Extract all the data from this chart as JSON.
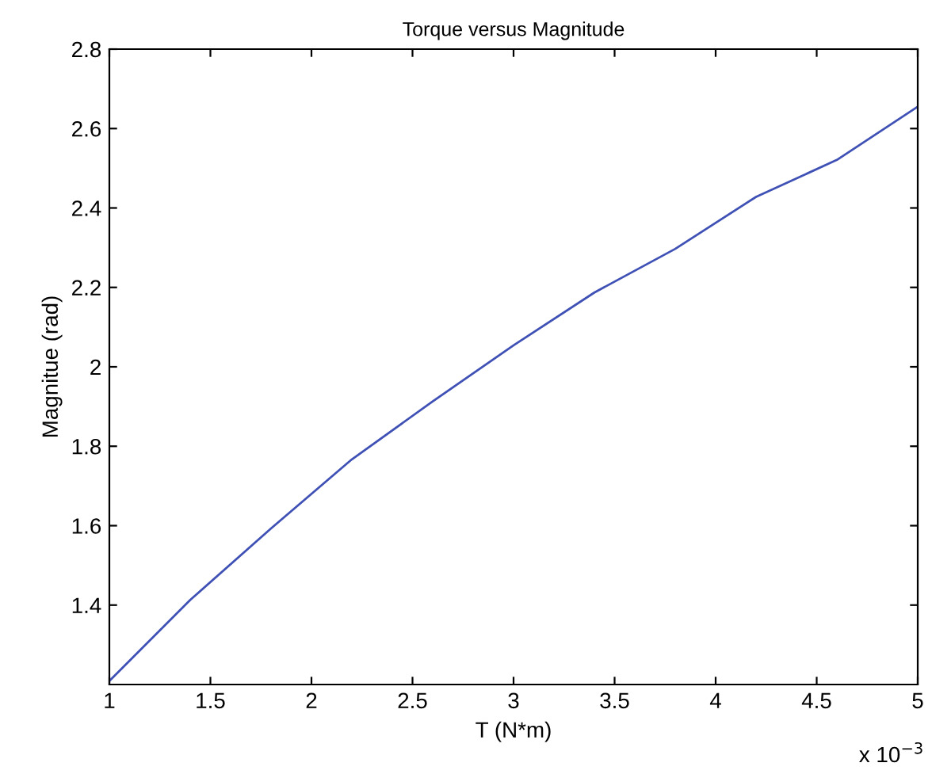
{
  "chart_data": {
    "type": "line",
    "title": "Torque versus Magnitude",
    "xlabel": "T (N*m)",
    "ylabel": "Magnitue (rad)",
    "x": [
      1,
      1.4,
      1.8,
      2.2,
      2.6,
      3.0,
      3.4,
      3.8,
      4.2,
      4.6,
      5.0
    ],
    "series": [
      {
        "color": "#3f51b5",
        "values": [
          1.209,
          1.413,
          1.593,
          1.767,
          1.913,
          2.054,
          2.187,
          2.297,
          2.428,
          2.521,
          2.655
        ]
      }
    ],
    "xlim": [
      1,
      5
    ],
    "xticks": [
      1,
      1.5,
      2,
      2.5,
      3,
      3.5,
      4,
      4.5,
      5
    ],
    "ylim": [
      1.2,
      2.8
    ],
    "yticks": [
      1.4,
      1.6,
      1.8,
      2,
      2.2,
      2.4,
      2.6,
      2.8
    ],
    "annotations": [
      "x 10$^{−3}$"
    ],
    "grid": false,
    "legend": false,
    "marker": "none",
    "line_style": "solid"
  }
}
